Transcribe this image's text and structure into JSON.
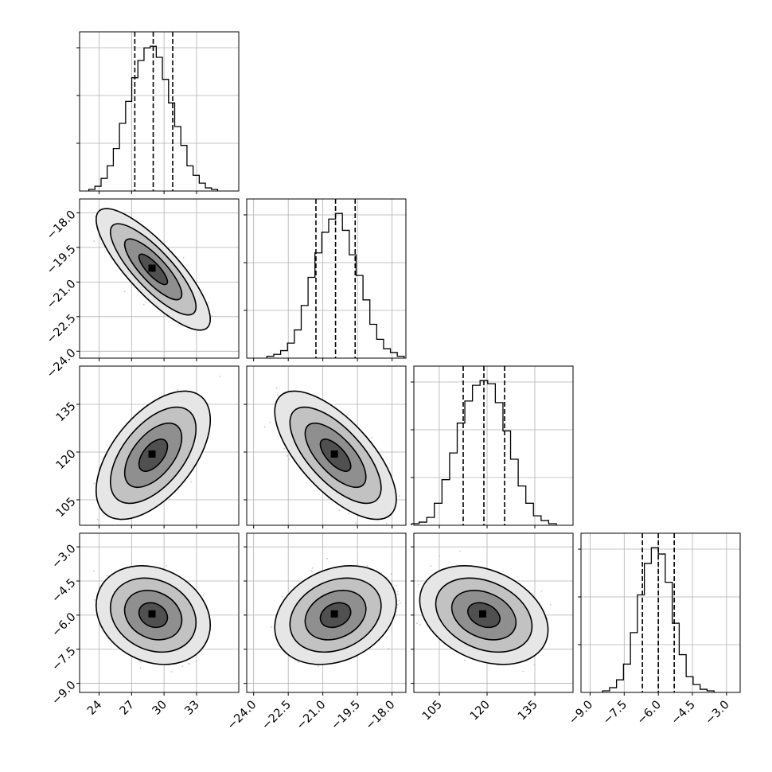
{
  "chart_data": {
    "type": "corner",
    "title": "",
    "grid": true,
    "parameters": [
      {
        "xlim": [
          22.2,
          36.9
        ],
        "ylim": [
          -21.2,
          -17.9
        ],
        "x_ticks": [
          "24",
          "27",
          "30",
          "33"
        ],
        "x_tick_values": [
          24,
          27,
          30,
          33
        ],
        "y_tick_values": [
          -21.2,
          -20.0,
          -18.8
        ],
        "mean": 29.0,
        "sd": 1.7,
        "quantiles": [
          27.3,
          29.0,
          30.8
        ]
      },
      {
        "xlim": [
          -24.3,
          -17.4
        ],
        "ylim": [
          -24.3,
          -17.4
        ],
        "x_ticks": [
          "−24.0",
          "−22.5",
          "−21.0",
          "−19.5",
          "−18.0"
        ],
        "y_ticks": [
          "−18.0",
          "−19.5",
          "−21.0",
          "−22.5",
          "−24.0"
        ],
        "x_tick_values": [
          -24.0,
          -22.5,
          -21.0,
          -19.5,
          -18.0
        ],
        "y_tick_values": [
          -18.0,
          -19.5,
          -21.0,
          -22.5,
          -24.0
        ],
        "mean": -20.45,
        "sd": 0.85,
        "quantiles": [
          -21.3,
          -20.45,
          -19.6
        ]
      },
      {
        "xlim": [
          97.0,
          147.0
        ],
        "ylim": [
          97.0,
          147.0
        ],
        "x_ticks": [
          "105",
          "120",
          "135"
        ],
        "y_ticks": [
          "135",
          "120",
          "105"
        ],
        "x_tick_values": [
          105,
          120,
          135
        ],
        "y_tick_values": [
          135,
          120,
          105
        ],
        "mean": 119.0,
        "sd": 6.5,
        "quantiles": [
          112.5,
          119.0,
          125.5
        ]
      },
      {
        "xlim": [
          -9.4,
          -2.4
        ],
        "ylim": [
          -9.4,
          -2.4
        ],
        "x_ticks": [
          "−9.0",
          "−7.5",
          "−6.0",
          "−4.5",
          "−3.0"
        ],
        "y_ticks": [
          "−3.0",
          "−4.5",
          "−6.0",
          "−7.5",
          "−9.0"
        ],
        "x_tick_values": [
          -9.0,
          -7.5,
          -6.0,
          -4.5,
          -3.0
        ],
        "y_tick_values": [
          -3.0,
          -4.5,
          -6.0,
          -7.5,
          -9.0
        ],
        "mean": -6.0,
        "sd": 0.7,
        "quantiles": [
          -6.7,
          -6.0,
          -5.3
        ]
      }
    ],
    "histograms": [
      {
        "counts": [
          1,
          3,
          8,
          16,
          27,
          43,
          57,
          72,
          83,
          91,
          92,
          85,
          71,
          56,
          41,
          29,
          16,
          10,
          5,
          2,
          1
        ]
      },
      {
        "counts": [
          1,
          2,
          4,
          8,
          15,
          28,
          43,
          56,
          67,
          74,
          77,
          68,
          55,
          44,
          31,
          18,
          10,
          5,
          3,
          1
        ]
      },
      {
        "counts": [
          1,
          2,
          5,
          14,
          29,
          46,
          65,
          79,
          89,
          92,
          90,
          78,
          60,
          42,
          25,
          14,
          6,
          3,
          1
        ]
      },
      {
        "counts": [
          1,
          3,
          8,
          18,
          38,
          62,
          82,
          92,
          88,
          70,
          44,
          24,
          10,
          5,
          2,
          1
        ]
      }
    ],
    "pairs": [
      {
        "row": 1,
        "col": 0,
        "corr": -0.82
      },
      {
        "row": 2,
        "col": 0,
        "corr": 0.55
      },
      {
        "row": 2,
        "col": 1,
        "corr": -0.68
      },
      {
        "row": 3,
        "col": 0,
        "corr": -0.2
      },
      {
        "row": 3,
        "col": 1,
        "corr": 0.25
      },
      {
        "row": 3,
        "col": 2,
        "corr": -0.3
      }
    ],
    "contour_levels_sigma": [
      0.5,
      1.0,
      1.5,
      2.0
    ],
    "colors": {
      "density": "#000000",
      "points": "#b0b0b0",
      "grid": "#b0b0b0",
      "axis": "#000000"
    }
  }
}
